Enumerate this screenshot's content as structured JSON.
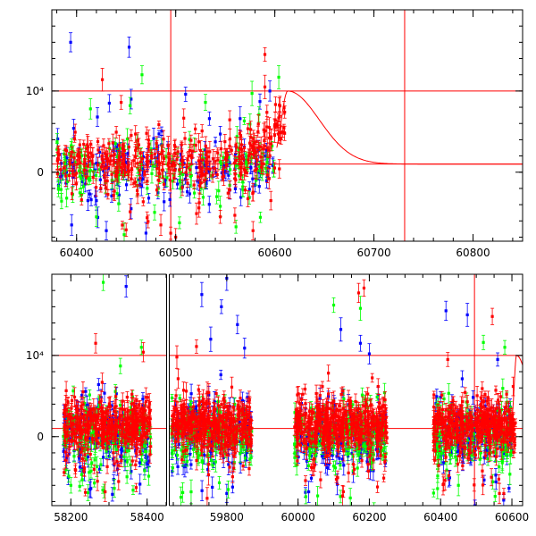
{
  "chart_data": [
    {
      "type": "scatter",
      "panel": "top",
      "title": "",
      "xlabel": "",
      "ylabel": "",
      "xlim": [
        60375,
        60850
      ],
      "ylim": [
        -8500,
        20000
      ],
      "x_ticks": [
        {
          "value": 60400,
          "label": "60400"
        },
        {
          "value": 60500,
          "label": "60500"
        },
        {
          "value": 60600,
          "label": "60600"
        },
        {
          "value": 60700,
          "label": "60700"
        },
        {
          "value": 60800,
          "label": "60800"
        }
      ],
      "y_ticks": [
        {
          "value": 0,
          "label": "0"
        },
        {
          "value": 10000,
          "label": "10⁴"
        }
      ],
      "reference_lines": {
        "horizontal": [
          10000,
          1000
        ],
        "vertical": [
          60495,
          60731
        ]
      },
      "model_curve": {
        "baseline": 1000,
        "peak_x": 60613,
        "peak_y": 10000,
        "start_x": 60602,
        "end_x": 60850,
        "description_points": [
          [
            60602,
            7800
          ],
          [
            60613,
            10000
          ],
          [
            60640,
            7000
          ],
          [
            60680,
            2800
          ],
          [
            60731,
            1200
          ],
          [
            60850,
            1000
          ]
        ]
      },
      "series": [
        {
          "name": "",
          "color": "#0000ff",
          "clusters": [
            {
              "x_range": [
                60380,
                60600
              ],
              "y_center": 500,
              "spread": 1700
            }
          ],
          "outliers": [
            [
              60394,
              16000
            ],
            [
              60453,
              15400
            ],
            [
              60455,
              9000
            ],
            [
              60433,
              8500
            ],
            [
              60397,
              5400
            ],
            [
              60421,
              6800
            ],
            [
              60510,
              9600
            ],
            [
              60534,
              6600
            ],
            [
              60545,
              4700
            ],
            [
              60565,
              6600
            ],
            [
              60585,
              8700
            ],
            [
              60595,
              10000
            ],
            [
              60420,
              -3500
            ],
            [
              60395,
              -6500
            ],
            [
              60455,
              -4500
            ],
            [
              60430,
              -7200
            ],
            [
              60470,
              -7500
            ]
          ]
        },
        {
          "name": "",
          "color": "#00ff00",
          "clusters": [
            {
              "x_range": [
                60380,
                60600
              ],
              "y_center": 500,
              "spread": 1700
            }
          ],
          "outliers": [
            [
              60466,
              12000
            ],
            [
              60577,
              9700
            ],
            [
              60604,
              11700
            ],
            [
              60414,
              7800
            ],
            [
              60454,
              8200
            ],
            [
              60530,
              8600
            ],
            [
              60584,
              7100
            ],
            [
              60390,
              -3200
            ],
            [
              60420,
              -5500
            ],
            [
              60448,
              -7700
            ],
            [
              60405,
              -2800
            ],
            [
              60545,
              -4200
            ]
          ]
        },
        {
          "name": "",
          "color": "#ff0000",
          "clusters": [
            {
              "x_range": [
                60380,
                60610
              ],
              "y_center": 1500,
              "spread": 1500
            }
          ],
          "outliers": [
            [
              60590,
              14500
            ],
            [
              60426,
              11400
            ],
            [
              60445,
              8600
            ],
            [
              60590,
              10500
            ],
            [
              60521,
              -5100
            ],
            [
              60545,
              -5500
            ],
            [
              60485,
              -6500
            ],
            [
              60500,
              -8000
            ],
            [
              60578,
              -7200
            ],
            [
              60450,
              -7100
            ],
            [
              60596,
              -3500
            ]
          ]
        }
      ]
    },
    {
      "type": "scatter",
      "panel": "bottom",
      "title": "",
      "xlabel": "",
      "ylabel": "",
      "broken_axis": true,
      "segments": [
        {
          "xlim": [
            58150,
            58450
          ]
        },
        {
          "xlim": [
            59640,
            60630
          ]
        }
      ],
      "ylim": [
        -8500,
        20000
      ],
      "x_ticks": [
        {
          "value": 58200,
          "label": "58200"
        },
        {
          "value": 58400,
          "label": "58400"
        },
        {
          "value": 59800,
          "label": "59800"
        },
        {
          "value": 60000,
          "label": "60000"
        },
        {
          "value": 60200,
          "label": "60200"
        },
        {
          "value": 60400,
          "label": "60400"
        },
        {
          "value": 60600,
          "label": "60600"
        }
      ],
      "y_ticks": [
        {
          "value": 0,
          "label": "0"
        },
        {
          "value": 10000,
          "label": "10⁴"
        }
      ],
      "reference_lines": {
        "horizontal": [
          10000,
          1000
        ],
        "vertical": [
          60495
        ]
      },
      "model_curve": {
        "baseline": 1000,
        "peak_x": 60613,
        "peak_y": 10000,
        "start_x": 60600,
        "end_x": 60630,
        "description_points": [
          [
            60600,
            8500
          ],
          [
            60613,
            10000
          ],
          [
            60622,
            6000
          ],
          [
            60630,
            2500
          ]
        ]
      },
      "series": [
        {
          "name": "",
          "color": "#0000ff",
          "clusters": [
            {
              "x_range": [
                58180,
                58410
              ],
              "y_center": 400,
              "spread": 1800
            },
            {
              "x_range": [
                59645,
                59870
              ],
              "y_center": 400,
              "spread": 1800
            },
            {
              "x_range": [
                59990,
                60250
              ],
              "y_center": 400,
              "spread": 1800
            },
            {
              "x_range": [
                60380,
                60600
              ],
              "y_center": 400,
              "spread": 1800
            }
          ],
          "outliers": [
            [
              58345,
              18500
            ],
            [
              59730,
              17500
            ],
            [
              59785,
              16000
            ],
            [
              59800,
              19500
            ],
            [
              59755,
              12000
            ],
            [
              59830,
              13800
            ],
            [
              59850,
              10900
            ],
            [
              60120,
              13200
            ],
            [
              60175,
              11500
            ],
            [
              60200,
              10200
            ],
            [
              60415,
              15500
            ],
            [
              60475,
              15000
            ],
            [
              60560,
              9500
            ],
            [
              58250,
              -6500
            ],
            [
              59800,
              -7000
            ],
            [
              60030,
              -6800
            ]
          ]
        },
        {
          "name": "",
          "color": "#00ff00",
          "clusters": [
            {
              "x_range": [
                58180,
                58410
              ],
              "y_center": 400,
              "spread": 1800
            },
            {
              "x_range": [
                59645,
                59870
              ],
              "y_center": 400,
              "spread": 1800
            },
            {
              "x_range": [
                59990,
                60250
              ],
              "y_center": 400,
              "spread": 1800
            },
            {
              "x_range": [
                60380,
                60600
              ],
              "y_center": 400,
              "spread": 1800
            }
          ],
          "outliers": [
            [
              58285,
              19000
            ],
            [
              58330,
              8700
            ],
            [
              58385,
              11000
            ],
            [
              60100,
              16200
            ],
            [
              60175,
              15800
            ],
            [
              60520,
              11600
            ],
            [
              60580,
              11000
            ],
            [
              58200,
              -6000
            ],
            [
              59700,
              -6800
            ],
            [
              60055,
              -7300
            ],
            [
              60450,
              -6000
            ]
          ]
        },
        {
          "name": "",
          "color": "#ff0000",
          "clusters": [
            {
              "x_range": [
                58180,
                58410
              ],
              "y_center": 1500,
              "spread": 1500
            },
            {
              "x_range": [
                59645,
                59870
              ],
              "y_center": 1500,
              "spread": 1500
            },
            {
              "x_range": [
                59990,
                60250
              ],
              "y_center": 1500,
              "spread": 1500
            },
            {
              "x_range": [
                60380,
                60610
              ],
              "y_center": 1500,
              "spread": 1500
            }
          ],
          "outliers": [
            [
              58265,
              11500
            ],
            [
              58390,
              10400
            ],
            [
              60170,
              17700
            ],
            [
              60185,
              18300
            ],
            [
              60545,
              14800
            ],
            [
              59715,
              11100
            ],
            [
              59660,
              9800
            ],
            [
              60420,
              9500
            ],
            [
              58290,
              -6800
            ],
            [
              59745,
              -7600
            ],
            [
              60125,
              -7300
            ],
            [
              60565,
              -7000
            ]
          ]
        }
      ]
    }
  ]
}
